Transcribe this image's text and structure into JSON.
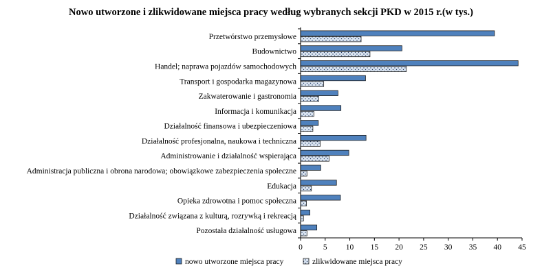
{
  "chart_data": {
    "type": "bar",
    "orientation": "horizontal",
    "title": "Nowo utworzone i zlikwidowane miejsca pracy według wybranych sekcji PKD w 2015 r.(w tys.)",
    "categories": [
      "Przetwórstwo przemysłowe",
      "Budownictwo",
      "Handel; naprawa pojazdów samochodowych",
      "Transport i gospodarka magazynowa",
      "Zakwaterowanie i gastronomia",
      "Informacja i komunikacja",
      "Działalność finansowa i ubezpieczeniowa",
      "Działalność profesjonalna, naukowa i techniczna",
      "Administrowanie i działalność wspierająca",
      "Administracja publiczna i obrona narodowa; obowiązkowe zabezpieczenia społeczne",
      "Edukacja",
      "Opieka zdrowotna i pomoc społeczna",
      "Działalność związana z kulturą, rozrywką i rekreacją",
      "Pozostała działalność usługowa"
    ],
    "series": [
      {
        "name": "nowo utworzone miejsca pracy",
        "color": "#4f81bd",
        "pattern": "solid",
        "values": [
          39.4,
          20.6,
          44.2,
          13.2,
          7.6,
          8.2,
          3.6,
          13.3,
          9.8,
          4.1,
          7.3,
          8.1,
          1.9,
          3.3
        ]
      },
      {
        "name": "zlikwidowane miejsca pracy",
        "color": "#dbe5f1",
        "pattern": "dotted",
        "values": [
          12.3,
          14.1,
          21.5,
          4.7,
          3.7,
          2.7,
          2.5,
          4.0,
          5.8,
          1.3,
          2.2,
          1.2,
          0.6,
          1.3
        ]
      }
    ],
    "xlim": [
      0,
      45
    ],
    "xticks": [
      0,
      5,
      10,
      15,
      20,
      25,
      30,
      35,
      40,
      45
    ],
    "xlabel": "",
    "ylabel": "",
    "grid": false,
    "legend_position": "bottom"
  }
}
